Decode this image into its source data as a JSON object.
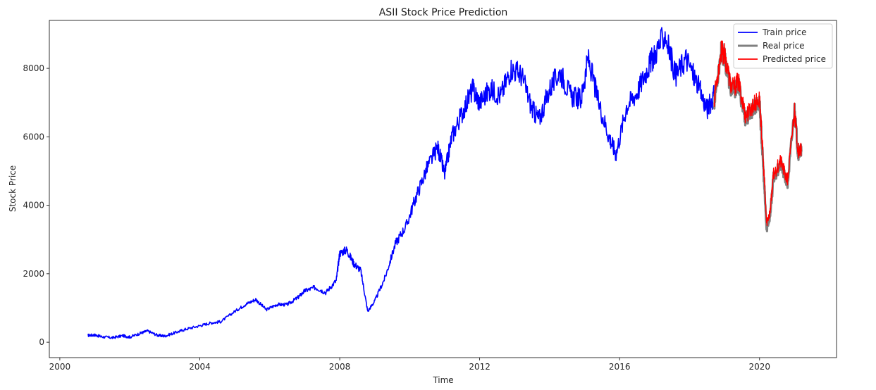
{
  "chart_data": {
    "type": "line",
    "title": "ASII Stock Price Prediction",
    "xlabel": "Time",
    "ylabel": "Stock Price",
    "xlim": [
      1999.7,
      2022.2
    ],
    "ylim": [
      -450,
      9400
    ],
    "x_ticks": [
      2000,
      2004,
      2008,
      2012,
      2016,
      2020
    ],
    "x_tick_labels": [
      "2000",
      "2004",
      "2008",
      "2012",
      "2016",
      "2020"
    ],
    "y_ticks": [
      0,
      2000,
      4000,
      6000,
      8000
    ],
    "y_tick_labels": [
      "0",
      "2000",
      "4000",
      "6000",
      "8000"
    ],
    "grid": false,
    "legend_position": "top-right",
    "series": [
      {
        "name": "Train price",
        "color": "#0000ff",
        "x": [
          2000.8,
          2001.0,
          2001.2,
          2001.5,
          2001.8,
          2002.0,
          2002.3,
          2002.5,
          2002.8,
          2003.0,
          2003.3,
          2003.6,
          2004.0,
          2004.3,
          2004.6,
          2005.0,
          2005.3,
          2005.6,
          2005.9,
          2006.2,
          2006.5,
          2006.8,
          2007.0,
          2007.3,
          2007.6,
          2007.9,
          2008.0,
          2008.2,
          2008.4,
          2008.6,
          2008.8,
          2009.0,
          2009.3,
          2009.6,
          2009.9,
          2010.2,
          2010.5,
          2010.8,
          2011.0,
          2011.2,
          2011.5,
          2011.8,
          2012.0,
          2012.3,
          2012.6,
          2012.9,
          2013.2,
          2013.5,
          2013.7,
          2014.0,
          2014.3,
          2014.6,
          2014.9,
          2015.1,
          2015.4,
          2015.7,
          2015.9,
          2016.2,
          2016.5,
          2016.8,
          2017.0,
          2017.3,
          2017.6,
          2017.9,
          2018.2,
          2018.5,
          2018.7
        ],
        "y": [
          200,
          210,
          160,
          130,
          190,
          150,
          260,
          330,
          200,
          180,
          280,
          380,
          480,
          560,
          600,
          900,
          1100,
          1250,
          950,
          1100,
          1100,
          1300,
          1500,
          1600,
          1450,
          1800,
          2600,
          2700,
          2300,
          2100,
          900,
          1200,
          1900,
          2900,
          3400,
          4300,
          5100,
          5700,
          4900,
          6000,
          6700,
          7400,
          7000,
          7400,
          7200,
          8000,
          7800,
          6800,
          6500,
          7400,
          7900,
          7200,
          7100,
          8300,
          7000,
          6000,
          5500,
          6900,
          7300,
          8000,
          8400,
          9000,
          7800,
          8300,
          7600,
          6800,
          7200
        ]
      },
      {
        "name": "Real price",
        "color": "#808080",
        "x": [
          2018.7,
          2018.9,
          2019.0,
          2019.2,
          2019.4,
          2019.6,
          2019.8,
          2020.0,
          2020.1,
          2020.2,
          2020.3,
          2020.4,
          2020.6,
          2020.8,
          2021.0,
          2021.1,
          2021.2
        ],
        "y": [
          7000,
          8500,
          8300,
          7300,
          7500,
          6500,
          6800,
          7000,
          5200,
          3300,
          3700,
          4800,
          5200,
          4600,
          6800,
          5500,
          5600
        ]
      },
      {
        "name": "Predicted price",
        "color": "#ff0000",
        "x": [
          2018.7,
          2018.9,
          2019.0,
          2019.2,
          2019.4,
          2019.6,
          2019.8,
          2020.0,
          2020.1,
          2020.2,
          2020.3,
          2020.4,
          2020.6,
          2020.8,
          2021.0,
          2021.1,
          2021.2
        ],
        "y": [
          7100,
          8500,
          8400,
          7400,
          7600,
          6600,
          6900,
          7100,
          5400,
          3500,
          3800,
          4900,
          5300,
          4700,
          6800,
          5600,
          5600
        ]
      }
    ]
  }
}
